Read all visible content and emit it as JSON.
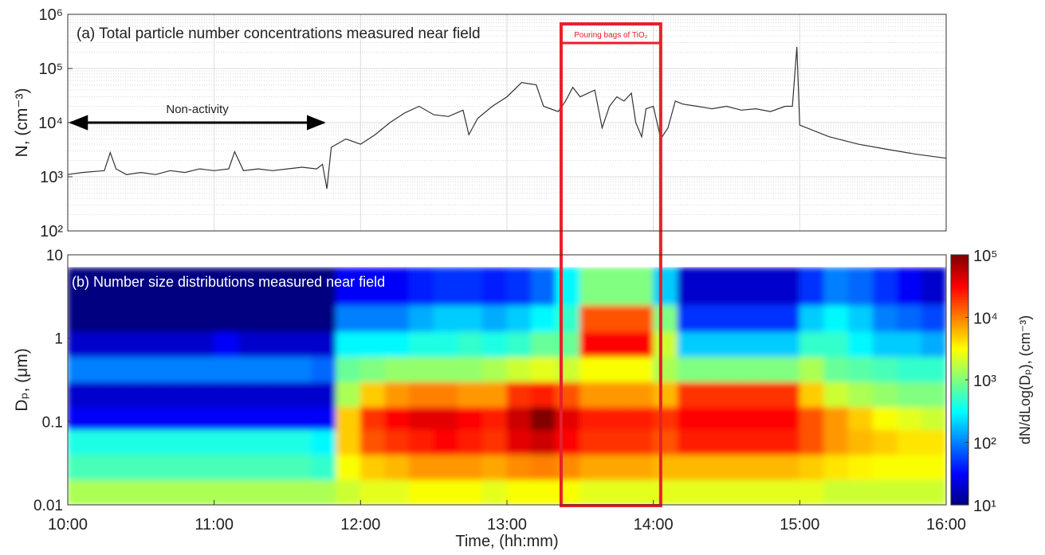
{
  "chart_data": [
    {
      "type": "line",
      "annotation": "(a) Total particle number concentrations measured near field",
      "y_label": "N, (cm⁻³)",
      "ylog": true,
      "ylim": [
        100,
        1000000
      ],
      "yticks": [
        {
          "value": 100,
          "label": "10²"
        },
        {
          "value": 1000,
          "label": "10³"
        },
        {
          "value": 10000,
          "label": "10⁴"
        },
        {
          "value": 100000,
          "label": "10⁵"
        },
        {
          "value": 1000000,
          "label": "10⁶"
        }
      ],
      "xlim": [
        10,
        16
      ],
      "xticks": [
        10,
        11,
        12,
        13,
        14,
        15,
        16
      ],
      "grid": true,
      "color": "#333333",
      "arrow": {
        "text": "Non-activity",
        "x": [
          10.02,
          11.75
        ],
        "y": 10000
      },
      "x": [
        10.0,
        10.1,
        10.25,
        10.29,
        10.33,
        10.4,
        10.5,
        10.6,
        10.7,
        10.8,
        10.9,
        11.0,
        11.1,
        11.14,
        11.2,
        11.3,
        11.4,
        11.5,
        11.6,
        11.7,
        11.74,
        11.77,
        11.8,
        11.9,
        12.0,
        12.1,
        12.2,
        12.3,
        12.4,
        12.5,
        12.6,
        12.7,
        12.74,
        12.8,
        12.9,
        13.0,
        13.1,
        13.2,
        13.25,
        13.35,
        13.4,
        13.45,
        13.5,
        13.6,
        13.65,
        13.7,
        13.75,
        13.8,
        13.85,
        13.88,
        13.92,
        13.95,
        14.0,
        14.05,
        14.1,
        14.15,
        14.2,
        14.3,
        14.4,
        14.5,
        14.6,
        14.7,
        14.8,
        14.9,
        14.95,
        14.98,
        15.0,
        15.2,
        15.4,
        15.6,
        15.8,
        16.0
      ],
      "values": [
        1100,
        1200,
        1300,
        2800,
        1400,
        1100,
        1200,
        1100,
        1300,
        1200,
        1400,
        1300,
        1400,
        2900,
        1300,
        1400,
        1300,
        1400,
        1500,
        1400,
        1700,
        600,
        3500,
        5000,
        4000,
        6000,
        10000,
        15000,
        20000,
        14000,
        13000,
        17000,
        6000,
        12000,
        20000,
        30000,
        55000,
        50000,
        20000,
        16000,
        25000,
        45000,
        30000,
        40000,
        8000,
        20000,
        30000,
        25000,
        35000,
        10000,
        5500,
        18000,
        20000,
        5000,
        8000,
        25000,
        22000,
        20000,
        18000,
        20000,
        17000,
        18000,
        16000,
        20000,
        20000,
        250000,
        9000,
        5500,
        4000,
        3200,
        2600,
        2200
      ]
    },
    {
      "type": "heatmap",
      "annotation": "(b) Number size distributions measured near field",
      "y_label": "Dₚ, (μm)",
      "x_label": "Time, (hh:mm)",
      "ylog": true,
      "ylim": [
        0.01,
        10
      ],
      "yticks": [
        0.01,
        0.1,
        1,
        10
      ],
      "xlim": [
        10,
        16
      ],
      "xticks": [
        {
          "value": 10,
          "label": "10:00"
        },
        {
          "value": 11,
          "label": "11:00"
        },
        {
          "value": 12,
          "label": "12:00"
        },
        {
          "value": 13,
          "label": "13:00"
        },
        {
          "value": 14,
          "label": "14:00"
        },
        {
          "value": 15,
          "label": "15:00"
        },
        {
          "value": 16,
          "label": "16:00"
        }
      ],
      "colormap": "jet",
      "clog": true,
      "clim": [
        10,
        100000
      ],
      "cticks": [
        {
          "value": 10,
          "label": "10¹"
        },
        {
          "value": 100,
          "label": "10²"
        },
        {
          "value": 1000,
          "label": "10³"
        },
        {
          "value": 10000,
          "label": "10⁴"
        },
        {
          "value": 100000,
          "label": "10⁵"
        }
      ],
      "colorbar_label": "dN/dLog(Dₚ), (cm⁻³)",
      "xbins": [
        10,
        10.167,
        10.333,
        10.5,
        10.667,
        10.833,
        11,
        11.167,
        11.333,
        11.5,
        11.667,
        11.833,
        12,
        12.167,
        12.333,
        12.5,
        12.667,
        12.833,
        13,
        13.167,
        13.333,
        13.5,
        13.667,
        13.833,
        14,
        14.167,
        14.333,
        14.5,
        14.667,
        14.833,
        15,
        15.167,
        15.333,
        15.5,
        15.667,
        15.833,
        16
      ],
      "ybins": [
        0.01,
        0.02,
        0.04,
        0.08,
        0.15,
        0.3,
        0.6,
        1.2,
        2.5,
        7
      ],
      "z": [
        [
          1500,
          1500,
          1500,
          1500,
          1500,
          1500,
          1500,
          1500,
          1500,
          1500,
          1500,
          2000,
          2500,
          2500,
          3000,
          3000,
          3000,
          2500,
          3000,
          3000,
          3000,
          2500,
          2500,
          2500,
          2500,
          2500,
          2500,
          2500,
          2500,
          2500,
          2500,
          2000,
          2000,
          2000,
          2000,
          2000
        ],
        [
          600,
          600,
          600,
          600,
          600,
          600,
          600,
          600,
          600,
          600,
          500,
          3000,
          5000,
          6000,
          8000,
          8000,
          8000,
          7000,
          9000,
          10000,
          9000,
          7000,
          7000,
          7000,
          6000,
          6000,
          6000,
          6000,
          6000,
          6000,
          5000,
          4000,
          3500,
          3000,
          3000,
          3000
        ],
        [
          400,
          400,
          400,
          400,
          400,
          400,
          400,
          400,
          400,
          400,
          300,
          5000,
          15000,
          20000,
          25000,
          30000,
          25000,
          20000,
          40000,
          50000,
          30000,
          20000,
          20000,
          20000,
          15000,
          25000,
          25000,
          25000,
          25000,
          25000,
          15000,
          8000,
          6000,
          5000,
          4000,
          4000
        ],
        [
          30,
          30,
          30,
          30,
          30,
          30,
          30,
          30,
          30,
          30,
          30,
          5000,
          20000,
          30000,
          40000,
          40000,
          30000,
          25000,
          50000,
          100000,
          40000,
          25000,
          25000,
          25000,
          20000,
          30000,
          30000,
          30000,
          30000,
          30000,
          15000,
          8000,
          5000,
          3000,
          2500,
          2000
        ],
        [
          20,
          20,
          20,
          20,
          20,
          20,
          20,
          20,
          20,
          20,
          20,
          1500,
          5000,
          8000,
          10000,
          10000,
          8000,
          8000,
          20000,
          25000,
          15000,
          8000,
          8000,
          8000,
          6000,
          20000,
          20000,
          20000,
          20000,
          20000,
          5000,
          2000,
          1500,
          1200,
          1000,
          1000
        ],
        [
          100,
          100,
          100,
          100,
          100,
          100,
          100,
          100,
          100,
          100,
          80,
          800,
          1000,
          1200,
          1200,
          1200,
          1200,
          1500,
          2000,
          2500,
          2000,
          3000,
          3000,
          3000,
          1500,
          1000,
          1000,
          1000,
          1000,
          1000,
          1500,
          800,
          700,
          600,
          500,
          500
        ],
        [
          20,
          20,
          20,
          20,
          20,
          20,
          30,
          20,
          20,
          20,
          20,
          300,
          300,
          300,
          400,
          400,
          500,
          400,
          500,
          800,
          800,
          30000,
          30000,
          30000,
          2000,
          200,
          200,
          200,
          200,
          200,
          500,
          500,
          300,
          200,
          200,
          150
        ],
        [
          10,
          10,
          10,
          10,
          10,
          10,
          10,
          10,
          10,
          10,
          10,
          100,
          100,
          100,
          150,
          200,
          200,
          150,
          200,
          300,
          500,
          15000,
          15000,
          15000,
          1000,
          50,
          50,
          50,
          50,
          50,
          200,
          300,
          200,
          100,
          80,
          60
        ],
        [
          10,
          10,
          10,
          10,
          10,
          10,
          10,
          10,
          10,
          10,
          10,
          30,
          30,
          30,
          40,
          50,
          50,
          40,
          50,
          80,
          300,
          1000,
          1000,
          1000,
          200,
          20,
          20,
          20,
          20,
          20,
          50,
          100,
          80,
          50,
          30,
          20
        ]
      ]
    }
  ],
  "highlight": {
    "label": "Pouring bags of TiO₂",
    "x": [
      13.37,
      14.05
    ],
    "color": "#e8202a"
  }
}
